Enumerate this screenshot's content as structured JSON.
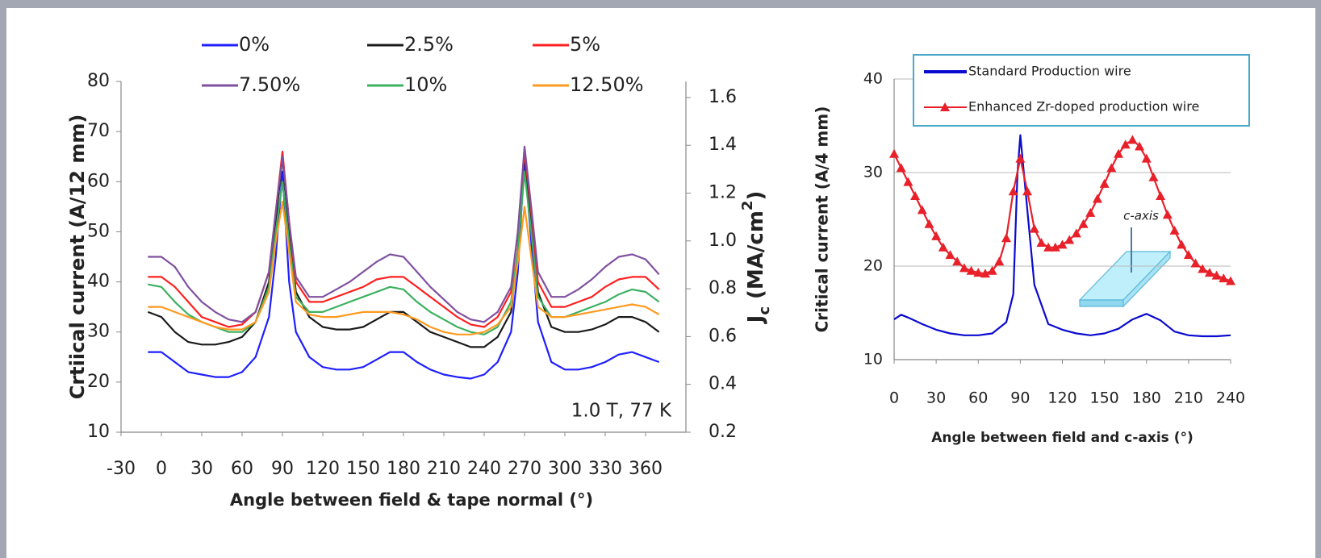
{
  "chart_data": [
    {
      "type": "line",
      "x": [
        -10,
        0,
        10,
        20,
        30,
        40,
        50,
        60,
        70,
        80,
        85,
        90,
        95,
        100,
        110,
        120,
        130,
        140,
        150,
        160,
        170,
        180,
        190,
        200,
        210,
        220,
        230,
        240,
        250,
        260,
        265,
        270,
        275,
        280,
        290,
        300,
        310,
        320,
        330,
        340,
        350,
        360,
        370
      ],
      "series": [
        {
          "name": "0%",
          "color": "#1f1fff",
          "values": [
            26,
            26,
            24,
            22,
            21.5,
            21,
            21,
            22,
            25,
            33,
            45,
            62,
            40,
            30,
            25,
            23,
            22.5,
            22.5,
            23,
            24.5,
            26,
            26,
            24,
            22.5,
            21.5,
            21,
            20.7,
            21.5,
            24,
            30,
            42,
            65,
            48,
            32,
            24,
            22.5,
            22.5,
            23,
            24,
            25.5,
            26,
            25,
            24
          ]
        },
        {
          "name": "2.5%",
          "color": "#1a1a1a",
          "values": [
            34,
            33,
            30,
            28,
            27.5,
            27.5,
            28,
            29,
            32,
            40,
            52,
            65,
            50,
            38,
            33,
            31,
            30.5,
            30.5,
            31,
            32.5,
            34,
            34,
            32,
            30,
            29,
            28,
            27,
            27,
            29,
            34,
            46,
            66,
            52,
            38,
            31,
            30,
            30,
            30.5,
            31.5,
            33,
            33,
            32,
            30
          ]
        },
        {
          "name": "5%",
          "color": "#ff2020",
          "values": [
            41,
            41,
            39,
            36,
            33,
            32,
            31,
            31.5,
            34,
            42,
            54,
            66,
            52,
            40,
            36,
            36,
            37,
            38,
            39,
            40.5,
            41,
            41,
            39,
            37,
            35,
            33,
            31.5,
            31,
            33,
            38,
            50,
            66,
            54,
            40,
            35,
            35,
            36,
            37,
            39,
            40.5,
            41,
            41,
            38.5
          ]
        },
        {
          "name": "7.50%",
          "color": "#7f50a0",
          "values": [
            45,
            45,
            43,
            39,
            36,
            34,
            32.5,
            32,
            34,
            42,
            54,
            65,
            52,
            41,
            37,
            37,
            38.5,
            40,
            42,
            44,
            45.5,
            45,
            42,
            39,
            36.5,
            34,
            32.5,
            32,
            34,
            39,
            50,
            67,
            55,
            42,
            37,
            37,
            38.5,
            40.5,
            43,
            45,
            45.5,
            44.5,
            41.5
          ]
        },
        {
          "name": "10%",
          "color": "#3cb060",
          "values": [
            39.5,
            39,
            36,
            33.5,
            32,
            31,
            30,
            30,
            32,
            39,
            50,
            60,
            48,
            37,
            34,
            34,
            35,
            36,
            37,
            38,
            39,
            38.5,
            36,
            34,
            32.5,
            31,
            30,
            29.5,
            31,
            36,
            46,
            62,
            50,
            37,
            33,
            33,
            34,
            35,
            36,
            37.5,
            38.5,
            38,
            36
          ]
        },
        {
          "name": "12.50%",
          "color": "#ff9a20",
          "values": [
            35,
            35,
            34,
            33,
            32,
            31,
            30.5,
            30.5,
            32,
            38,
            48,
            56,
            46,
            36,
            33.5,
            33,
            33,
            33.5,
            34,
            34,
            34,
            33.5,
            32.5,
            31,
            30,
            29.5,
            29.5,
            30,
            31.5,
            35,
            44,
            55,
            45,
            35,
            33,
            33,
            33.5,
            34,
            34.5,
            35,
            35.5,
            35,
            33.5
          ]
        }
      ],
      "xlim": [
        -30,
        390
      ],
      "ylim": [
        10,
        80
      ],
      "y2lim": [
        0.2,
        1.667
      ],
      "xticks": [
        -30,
        0,
        30,
        60,
        90,
        120,
        150,
        180,
        210,
        240,
        270,
        300,
        330,
        360
      ],
      "yticks": [
        10,
        20,
        30,
        40,
        50,
        60,
        70,
        80
      ],
      "y2ticks": [
        0.2,
        0.4,
        0.6,
        0.8,
        {
          "value": 1,
          "label": "1.0"
        },
        1.2,
        1.4,
        1.6
      ],
      "xlabel": "Angle between field & tape normal (°)",
      "ylabel": "Crtiical current (A/12 mm)",
      "y2label": {
        "main": "J",
        "sub": "c",
        "rest": " (MA/cm",
        "sup": "2",
        "end": ")"
      },
      "annotation": "1.0 T, 77 K",
      "grid": false,
      "legend": "top"
    },
    {
      "type": "line",
      "series": [
        {
          "name": "Standard Production wire",
          "color": "#0a0ad0",
          "marker": "none",
          "x": [
            0,
            5,
            10,
            20,
            30,
            40,
            50,
            60,
            70,
            80,
            85,
            88,
            90,
            95,
            100,
            110,
            120,
            130,
            140,
            150,
            160,
            170,
            180,
            190,
            200,
            210,
            220,
            230,
            240
          ],
          "values": [
            14.3,
            14.8,
            14.5,
            13.8,
            13.2,
            12.8,
            12.6,
            12.6,
            12.8,
            14,
            17,
            30,
            34,
            26,
            18,
            13.8,
            13.2,
            12.8,
            12.6,
            12.8,
            13.3,
            14.3,
            14.9,
            14.2,
            13,
            12.6,
            12.5,
            12.5,
            12.6
          ]
        },
        {
          "name": "Enhanced Zr-doped production wire",
          "color": "#e8202a",
          "marker": "triangle",
          "x": [
            0,
            5,
            10,
            15,
            20,
            25,
            30,
            35,
            40,
            45,
            50,
            55,
            60,
            65,
            70,
            75,
            80,
            85,
            90,
            95,
            100,
            105,
            110,
            115,
            120,
            125,
            130,
            135,
            140,
            145,
            150,
            155,
            160,
            165,
            170,
            175,
            180,
            185,
            190,
            195,
            200,
            205,
            210,
            215,
            220,
            225,
            230,
            235,
            240
          ],
          "values": [
            32,
            30.5,
            29,
            27.5,
            26,
            24.5,
            23.2,
            22,
            21.2,
            20.5,
            19.8,
            19.5,
            19.3,
            19.2,
            19.5,
            20.5,
            23,
            28,
            31.5,
            28,
            24,
            22.5,
            22,
            22,
            22.3,
            22.8,
            23.5,
            24.5,
            25.7,
            27.2,
            28.8,
            30.5,
            32,
            33,
            33.5,
            32.8,
            31.5,
            29.5,
            27.5,
            25.5,
            23.8,
            22.3,
            21.2,
            20.3,
            19.7,
            19.3,
            19,
            18.7,
            18.4
          ]
        }
      ],
      "xlim": [
        0,
        240
      ],
      "ylim": [
        10,
        40
      ],
      "xticks": [
        0,
        30,
        60,
        90,
        120,
        150,
        180,
        210,
        240
      ],
      "yticks": [
        10,
        20,
        30,
        40
      ],
      "xlabel": "Angle between field and c-axis (°)",
      "ylabel": "Critical current (A/4 mm)",
      "annotation": "c-axis",
      "grid": true,
      "legend": "top-right"
    }
  ]
}
